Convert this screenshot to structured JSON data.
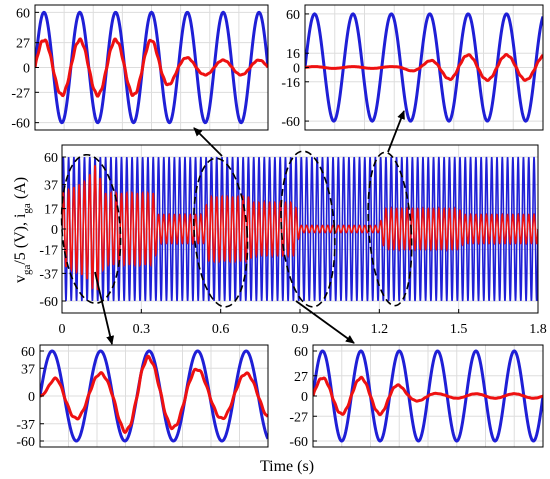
{
  "colors": {
    "voltage": "#1f1fd6",
    "current": "#ee1111",
    "grid": "#dddddd",
    "arrow": "#000000",
    "ellipse": "#000000"
  },
  "xlabel": "Time (s)",
  "ylabel_main": {
    "v": "v",
    "ga1": "ga",
    "mid": "/5 (V), i",
    "ga2": "ga",
    "unit": " (A)"
  },
  "chart_data": [
    {
      "id": "main",
      "type": "line",
      "xlim": [
        0,
        1.8
      ],
      "ylim": [
        -70,
        70
      ],
      "x_ticks": [
        "0",
        "0.3",
        "0.6",
        "0.9",
        "1.2",
        "1.5",
        "1.8"
      ],
      "x_tick_values": [
        0,
        0.3,
        0.6,
        0.9,
        1.2,
        1.5,
        1.8
      ],
      "y_ticks": [
        "60",
        "37",
        "17",
        "0",
        "-17",
        "-37",
        "-60"
      ],
      "y_tick_values": [
        60,
        37,
        17,
        0,
        -17,
        -37,
        -60
      ],
      "grid": true,
      "series": [
        {
          "key": "voltage",
          "amplitude": 60,
          "cycles": 90
        },
        {
          "key": "current",
          "cycles": 90,
          "envelope_t": [
            0,
            0.09,
            0.13,
            0.16,
            0.35,
            0.36,
            0.54,
            0.55,
            0.71,
            0.72,
            0.88,
            0.9,
            1.2,
            1.22,
            1.5,
            1.52,
            1.8
          ],
          "envelope_a": [
            30,
            40,
            55,
            30,
            30,
            12,
            12,
            27,
            27,
            22,
            22,
            3,
            3,
            17,
            17,
            12,
            12
          ]
        }
      ],
      "ellipses": [
        {
          "x": 0.11,
          "y": 0,
          "rx": 0.11,
          "ry": 62
        },
        {
          "x": 0.6,
          "y": -3,
          "rx": 0.1,
          "ry": 62
        },
        {
          "x": 0.93,
          "y": 0,
          "rx": 0.1,
          "ry": 65
        },
        {
          "x": 1.24,
          "y": 0,
          "rx": 0.08,
          "ry": 64
        }
      ]
    },
    {
      "id": "tl",
      "type": "line",
      "ylim": [
        -68,
        68
      ],
      "y_ticks": [
        "60",
        "27",
        "0",
        "-27",
        "-60"
      ],
      "y_tick_values": [
        60,
        27,
        0,
        -27,
        -60
      ],
      "grid": true,
      "series": [
        {
          "key": "voltage",
          "amplitude": 60,
          "cycles": 6.5
        },
        {
          "key": "current",
          "cycles": 6.5,
          "envelope_u": [
            0,
            0.5,
            0.62,
            0.72,
            1
          ],
          "envelope_a": [
            30,
            30,
            12,
            8,
            8
          ]
        }
      ]
    },
    {
      "id": "tr",
      "type": "line",
      "ylim": [
        -70,
        70
      ],
      "y_ticks": [
        "60",
        "16",
        "0",
        "-16",
        "-60"
      ],
      "y_tick_values": [
        60,
        16,
        0,
        -16,
        -60
      ],
      "grid": true,
      "series": [
        {
          "key": "voltage",
          "amplitude": 60,
          "cycles": 6.2
        },
        {
          "key": "current",
          "cycles": 6.2,
          "envelope_u": [
            0,
            0.38,
            0.5,
            0.62,
            1
          ],
          "envelope_a": [
            1,
            1,
            6,
            14,
            14
          ]
        }
      ]
    },
    {
      "id": "bl",
      "type": "line",
      "ylim": [
        -68,
        68
      ],
      "y_ticks": [
        "60",
        "37",
        "0",
        "-37",
        "-60"
      ],
      "y_tick_values": [
        60,
        37,
        0,
        -37,
        -60
      ],
      "grid": true,
      "series": [
        {
          "key": "voltage",
          "amplitude": 60,
          "cycles": 4.7
        },
        {
          "key": "current",
          "cycles": 4.7,
          "envelope_u": [
            0,
            0.08,
            0.3,
            0.36,
            0.44,
            0.5,
            0.7,
            0.75,
            1
          ],
          "envelope_a": [
            0,
            30,
            30,
            45,
            56,
            48,
            35,
            30,
            30
          ]
        }
      ]
    },
    {
      "id": "br",
      "type": "line",
      "ylim": [
        -68,
        68
      ],
      "y_ticks": [
        "60",
        "27",
        "0",
        "-27",
        "-60"
      ],
      "y_tick_values": [
        60,
        27,
        0,
        -27,
        -60
      ],
      "grid": true,
      "series": [
        {
          "key": "voltage",
          "amplitude": 60,
          "cycles": 6
        },
        {
          "key": "current",
          "cycles": 6,
          "envelope_u": [
            0,
            0.3,
            0.42,
            0.55,
            1
          ],
          "envelope_a": [
            24,
            24,
            8,
            3,
            3
          ]
        }
      ]
    }
  ]
}
